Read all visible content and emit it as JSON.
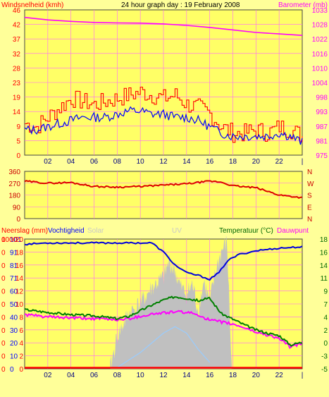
{
  "chart_data": [
    {
      "id": "wind_baro",
      "type": "line",
      "title": "24 hour graph day : 19 February 2008",
      "left_axis_label": "Windsnelheid (kmh)",
      "right_axis_label": "Barometer (mb)",
      "left_ticks": [
        "0",
        "5",
        "9",
        "14",
        "19",
        "23",
        "28",
        "32",
        "37",
        "42",
        "46"
      ],
      "right_ticks": [
        "975",
        "981",
        "987",
        "993",
        "998",
        "1004",
        "1010",
        "1016",
        "1022",
        "1028",
        "1033"
      ],
      "x_ticks": [
        "02",
        "04",
        "06",
        "08",
        "10",
        "12",
        "14",
        "16",
        "18",
        "20",
        "22",
        "|"
      ],
      "ylim_left": [
        0,
        46
      ],
      "ylim_right": [
        975,
        1033
      ],
      "grid": true,
      "colors": {
        "gust": "#ff0000",
        "wind": "#0000ff",
        "barometer": "#ff00ff",
        "plot_bg": "#ffff66"
      },
      "series": [
        {
          "name": "Barometer",
          "axis": "right",
          "x": [
            0,
            2,
            4,
            6,
            8,
            10,
            12,
            14,
            16,
            18,
            20,
            22,
            24
          ],
          "values": [
            1030,
            1029,
            1028.4,
            1028,
            1027.8,
            1027.7,
            1027.4,
            1026.8,
            1026,
            1025,
            1024,
            1023.4,
            1022.8
          ]
        },
        {
          "axis": "left",
          "x": [
            0,
            1,
            2,
            3,
            4,
            5,
            6,
            7,
            8,
            9,
            10,
            11,
            12,
            13,
            14,
            15,
            16,
            17,
            18,
            19,
            20,
            21,
            22,
            23,
            24
          ],
          "values": [
            10,
            9,
            12,
            15,
            18,
            17,
            16,
            17,
            18,
            19,
            20,
            19,
            18,
            19,
            16,
            15,
            13,
            9,
            7,
            7,
            8,
            7,
            9,
            8,
            6
          ]
        },
        {
          "axis": "left",
          "x": [
            0,
            1,
            2,
            3,
            4,
            5,
            6,
            7,
            8,
            9,
            10,
            11,
            12,
            13,
            14,
            15,
            16,
            17,
            18,
            19,
            20,
            21,
            22,
            23,
            24
          ],
          "values": [
            8,
            8,
            9,
            10,
            11,
            12,
            12,
            12,
            13,
            14,
            14,
            13,
            13,
            12,
            12,
            11,
            9,
            7,
            6,
            6,
            6,
            6,
            7,
            6,
            4
          ]
        }
      ]
    },
    {
      "id": "direction",
      "type": "line",
      "left_ticks": [
        "0",
        "90",
        "180",
        "270",
        "360"
      ],
      "right_ticks": [
        "N",
        "E",
        "S",
        "W",
        "N"
      ],
      "ylim": [
        0,
        360
      ],
      "grid": true,
      "colors": {
        "direction": "#dd0000"
      },
      "series": [
        {
          "x": [
            0,
            2,
            4,
            6,
            8,
            10,
            12,
            14,
            16,
            17,
            18,
            20,
            22,
            24
          ],
          "values": [
            285,
            270,
            275,
            245,
            240,
            245,
            255,
            265,
            285,
            278,
            250,
            235,
            180,
            160
          ]
        }
      ]
    },
    {
      "id": "rain_humidity_temp",
      "type": "area",
      "left_label_1": "Neerslag (mm)",
      "left_label_2": "Vochtigheid",
      "left_label_3": "Solar",
      "center_label": "UV",
      "right_label_1": "Temperatuur (°C)",
      "right_label_2": "Dauwpunt",
      "left_ticks_1": [
        "0",
        "10",
        "20",
        "30",
        "40",
        "50",
        "60",
        "71",
        "81",
        "91",
        "101"
      ],
      "left_ticks_2": [
        "0",
        "0",
        "0",
        "0",
        "0",
        "0",
        "0",
        "0",
        "0",
        "0",
        "0"
      ],
      "left_ticks_3": [
        "0",
        "2",
        "4",
        "6",
        "8",
        "10",
        "12",
        "14",
        "16",
        "18",
        "20"
      ],
      "right_ticks": [
        "-5",
        "-3",
        "0",
        "2",
        "4",
        "7",
        "9",
        "11",
        "14",
        "16",
        "18"
      ],
      "left_top_tick": "1000",
      "x_ticks": [
        "02",
        "04",
        "06",
        "08",
        "10",
        "12",
        "14",
        "16",
        "18",
        "20",
        "22",
        "|"
      ],
      "ylim_right": [
        -5,
        18
      ],
      "grid": true,
      "colors": {
        "humidity": "#0000dd",
        "temperature": "#008000",
        "dewpoint": "#ff00ff",
        "solar": "#c0c0c0",
        "uv": "#99ccff",
        "rain": "#ff0000"
      },
      "series": [
        {
          "name": "Vochtigheid",
          "x": [
            0,
            2,
            4,
            6,
            8,
            9.5,
            11,
            12,
            13,
            14,
            15,
            16,
            16.8,
            17.5,
            18.5,
            20,
            22,
            24
          ],
          "values": [
            96,
            97,
            97,
            97,
            97,
            97,
            97,
            90,
            80,
            74,
            72,
            69,
            74,
            83,
            88,
            91,
            93,
            94
          ]
        },
        {
          "name": "Temperatuur (°C)",
          "x": [
            0,
            2,
            4,
            6,
            8,
            9,
            10,
            11,
            12,
            13,
            14,
            15,
            16,
            17,
            18,
            19,
            20,
            21,
            22,
            23,
            23.5,
            24
          ],
          "values": [
            5.5,
            5,
            4.6,
            4.4,
            3.9,
            4.3,
            5.3,
            6.3,
            7.2,
            7.8,
            7.5,
            7.1,
            7.5,
            4.8,
            3.8,
            2.8,
            1.9,
            1.3,
            0.9,
            -0.8,
            -0.5,
            -0.3
          ]
        },
        {
          "name": "Dauwpunt",
          "x": [
            0,
            2,
            4,
            6,
            8,
            9,
            10,
            11,
            12,
            13,
            14,
            15,
            16,
            17,
            18,
            19,
            20,
            21,
            22,
            23,
            23.5,
            24
          ],
          "values": [
            4.6,
            4.2,
            4.0,
            3.9,
            3.7,
            3.9,
            4.3,
            4.7,
            4.9,
            5.1,
            5.0,
            4.6,
            3.6,
            3.3,
            2.9,
            2.3,
            1.5,
            1.0,
            0.4,
            -1.2,
            -0.8,
            -0.4
          ]
        },
        {
          "name": "Solar",
          "x": [
            7.4,
            8,
            9,
            10,
            11,
            12,
            12.5,
            13,
            13.5,
            14,
            14.5,
            15,
            15.5,
            16,
            16.5,
            17,
            17.5,
            17.9
          ],
          "values": [
            0,
            5,
            8.5,
            10,
            12.5,
            14,
            16.5,
            15,
            12.5,
            11.5,
            13,
            9,
            13.5,
            10,
            15,
            18,
            19.5,
            0
          ]
        },
        {
          "name": "UV",
          "x": [
            8,
            10,
            12,
            13,
            14,
            15,
            16
          ],
          "values": [
            0.2,
            2.5,
            5.5,
            6.5,
            5.5,
            3,
            1
          ]
        },
        {
          "name": "Neerslag (mm)",
          "x": [
            0,
            24
          ],
          "values": [
            0,
            0
          ]
        }
      ]
    }
  ]
}
